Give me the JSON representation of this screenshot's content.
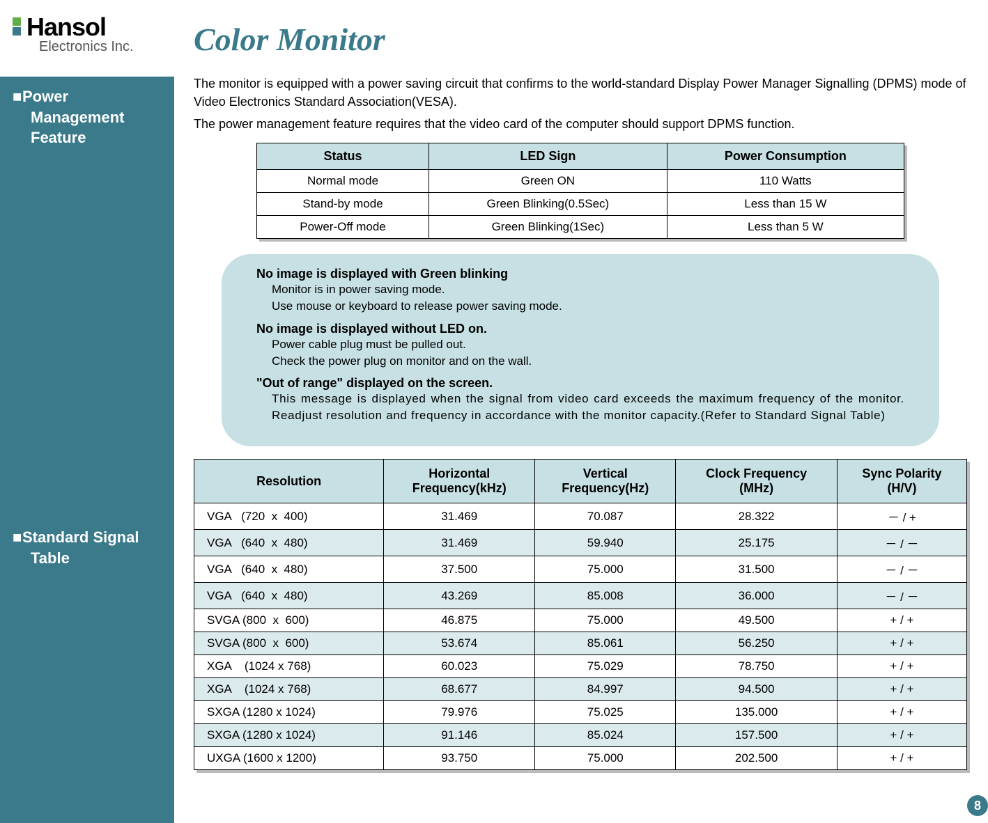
{
  "logo": {
    "brand": "Hansol",
    "sub": "Electronics Inc."
  },
  "title": "Color Monitor",
  "sidebar": {
    "section1_l1": "Power",
    "section1_l2": "Management",
    "section1_l3": "Feature",
    "section2_l1": "Standard Signal",
    "section2_l2": "Table"
  },
  "intro": {
    "p1": "The monitor is equipped with a power saving circuit that confirms to the world-standard Display Power Manager Signalling (DPMS) mode of Video Electronics Standard Association(VESA).",
    "p2": "The power management feature requires that the video card of the computer should support DPMS function."
  },
  "power_table": {
    "columns": [
      "Status",
      "LED Sign",
      "Power Consumption"
    ],
    "rows": [
      [
        "Normal mode",
        "Green ON",
        "110 Watts"
      ],
      [
        "Stand-by mode",
        "Green Blinking(0.5Sec)",
        "Less than 15 W"
      ],
      [
        "Power-Off mode",
        "Green Blinking(1Sec)",
        "Less than 5 W"
      ]
    ],
    "header_bg": "#c7e0e3"
  },
  "callout": {
    "items": [
      {
        "hd": "No image is displayed with Green blinking",
        "bd": "Monitor is in power saving mode.\nUse mouse or keyboard to release power saving mode."
      },
      {
        "hd": "No image is displayed without LED on.",
        "bd": "Power cable plug must be pulled out.\nCheck the power plug on monitor and on the wall."
      },
      {
        "hd": "\"Out of range\" displayed on the screen.",
        "bd": "This message is displayed when the signal from video card exceeds the maximum frequency of the monitor. Readjust resolution and frequency in accordance with the monitor capacity.(Refer to Standard Signal Table)"
      }
    ],
    "bg": "#c7e0e3"
  },
  "signal_table": {
    "columns": [
      "Resolution",
      "Horizontal Frequency(kHz)",
      "Vertical Frequency(Hz)",
      "Clock Frequency (MHz)",
      "Sync Polarity (H/V)"
    ],
    "col_br": [
      "Resolution",
      "Horizontal\nFrequency(kHz)",
      "Vertical\nFrequency(Hz)",
      "Clock Frequency\n(MHz)",
      "Sync Polarity\n(H/V)"
    ],
    "rows": [
      {
        "res": "VGA   (720  x  400)",
        "h": "31.469",
        "v": "70.087",
        "c": "28.322",
        "p": "－ / +"
      },
      {
        "res": "VGA   (640  x  480)",
        "h": "31.469",
        "v": "59.940",
        "c": "25.175",
        "p": "－ / －"
      },
      {
        "res": "VGA   (640  x  480)",
        "h": "37.500",
        "v": "75.000",
        "c": "31.500",
        "p": "－ / －"
      },
      {
        "res": "VGA   (640  x  480)",
        "h": "43.269",
        "v": "85.008",
        "c": "36.000",
        "p": "－ / －"
      },
      {
        "res": "SVGA (800  x  600)",
        "h": "46.875",
        "v": "75.000",
        "c": "49.500",
        "p": "+ / +"
      },
      {
        "res": "SVGA (800  x  600)",
        "h": "53.674",
        "v": "85.061",
        "c": "56.250",
        "p": "+ / +"
      },
      {
        "res": "XGA    (1024 x 768)",
        "h": "60.023",
        "v": "75.029",
        "c": "78.750",
        "p": "+ / +"
      },
      {
        "res": "XGA    (1024 x 768)",
        "h": "68.677",
        "v": "84.997",
        "c": "94.500",
        "p": "+ / +"
      },
      {
        "res": "SXGA (1280 x 1024)",
        "h": "79.976",
        "v": "75.025",
        "c": "135.000",
        "p": "+ / +"
      },
      {
        "res": "SXGA (1280 x 1024)",
        "h": "91.146",
        "v": "85.024",
        "c": "157.500",
        "p": "+ / +"
      },
      {
        "res": "UXGA (1600 x 1200)",
        "h": "93.750",
        "v": "75.000",
        "c": "202.500",
        "p": "+ / +"
      }
    ],
    "header_bg": "#c7e0e3",
    "row_alt_bg": "#dbeaed"
  },
  "colors": {
    "sidebar": "#3a7a8a",
    "title": "#3a7a8a",
    "table_header": "#c7e0e3",
    "callout_bg": "#c7e0e3",
    "logo_green": "#5fae48"
  },
  "page_number": "8"
}
